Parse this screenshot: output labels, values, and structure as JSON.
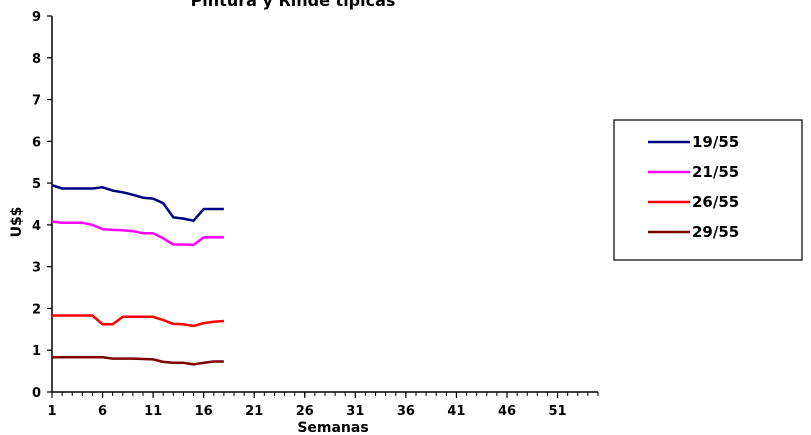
{
  "chart_data": {
    "type": "line",
    "title": "Pintura y Rinde típicas",
    "xlabel": "Semanas",
    "ylabel": "U$$",
    "xlim": [
      1,
      55
    ],
    "ylim": [
      0,
      9
    ],
    "x_ticks": [
      "1",
      "6",
      "11",
      "16",
      "21",
      "26",
      "31",
      "36",
      "41",
      "46",
      "51"
    ],
    "y_ticks": [
      "0",
      "1",
      "2",
      "3",
      "4",
      "5",
      "6",
      "7",
      "8",
      "9"
    ],
    "grid": false,
    "legend_position": "right",
    "x": [
      1,
      2,
      3,
      4,
      5,
      6,
      7,
      8,
      9,
      10,
      11,
      12,
      13,
      14,
      15,
      16,
      17,
      18
    ],
    "series": [
      {
        "name": "19/55",
        "color": "#000080",
        "values": [
          4.95,
          4.87,
          4.87,
          4.87,
          4.87,
          4.9,
          4.82,
          4.78,
          4.72,
          4.65,
          4.63,
          4.52,
          4.18,
          4.15,
          4.1,
          4.38,
          4.38,
          4.38
        ]
      },
      {
        "name": "21/55",
        "color": "#ff00ff",
        "values": [
          4.08,
          4.05,
          4.05,
          4.05,
          4.0,
          3.9,
          3.88,
          3.87,
          3.85,
          3.8,
          3.8,
          3.68,
          3.53,
          3.53,
          3.52,
          3.7,
          3.7,
          3.7
        ]
      },
      {
        "name": "26/55",
        "color": "#ff0000",
        "values": [
          1.83,
          1.83,
          1.83,
          1.83,
          1.83,
          1.62,
          1.62,
          1.8,
          1.8,
          1.8,
          1.8,
          1.72,
          1.63,
          1.62,
          1.58,
          1.65,
          1.68,
          1.7
        ]
      },
      {
        "name": "29/55",
        "color": "#800000",
        "values": [
          0.83,
          0.83,
          0.83,
          0.83,
          0.83,
          0.83,
          0.8,
          0.8,
          0.8,
          0.79,
          0.78,
          0.72,
          0.7,
          0.7,
          0.66,
          0.7,
          0.73,
          0.73
        ]
      }
    ]
  }
}
